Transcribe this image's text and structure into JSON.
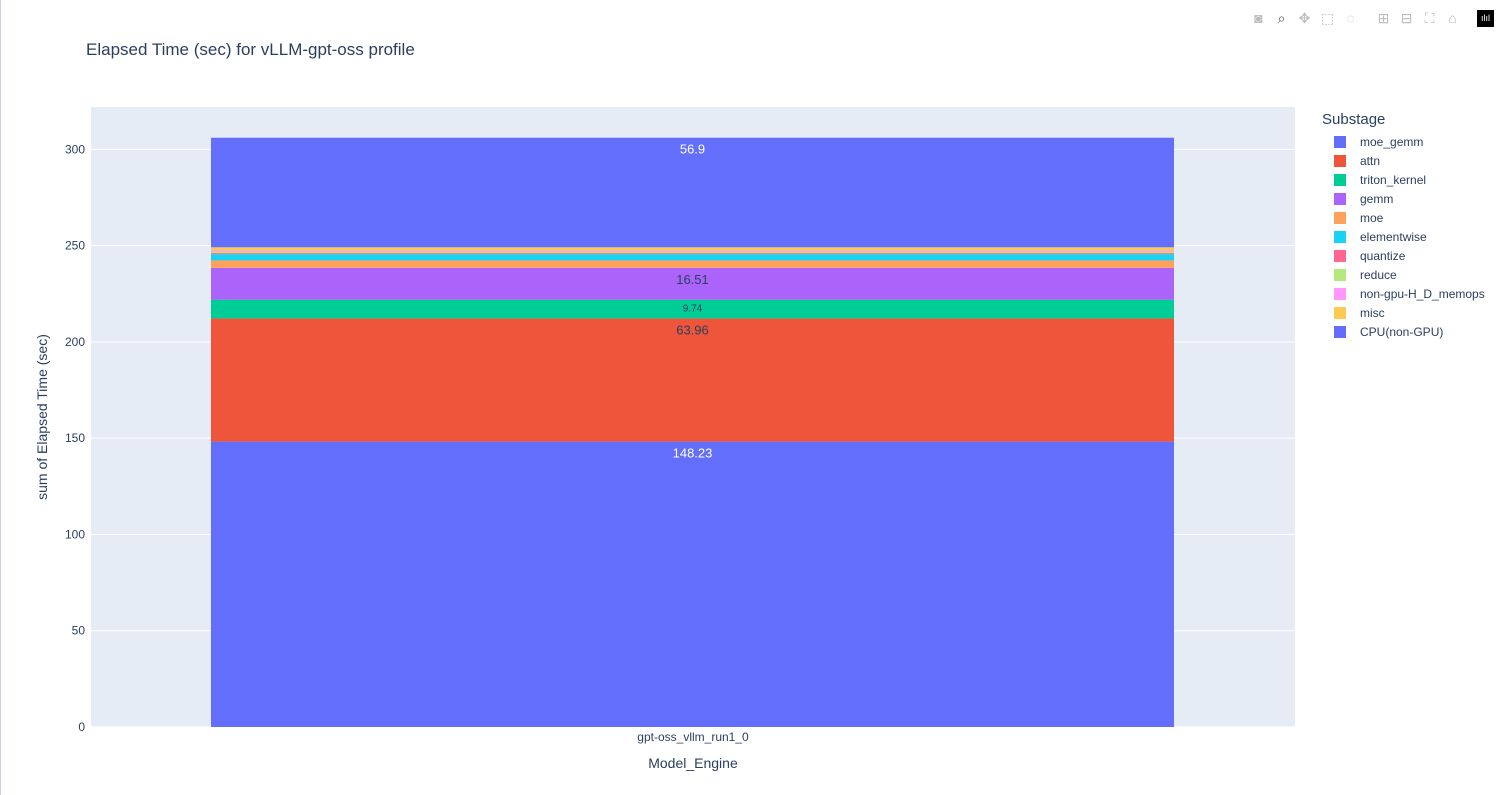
{
  "title": "Elapsed Time (sec) for vLLM-gpt-oss profile",
  "modebar": [
    "camera-icon",
    "zoom-icon",
    "pan-icon",
    "box-select-icon",
    "lasso-icon",
    "zoom-in-icon",
    "zoom-out-icon",
    "autoscale-icon",
    "reset-axes-icon",
    "plotly-logo-icon"
  ],
  "legend": {
    "title": "Substage"
  },
  "chart_data": {
    "type": "bar",
    "barmode": "stack",
    "title": "Elapsed Time (sec) for vLLM-gpt-oss profile",
    "xlabel": "Model_Engine",
    "ylabel": "sum of Elapsed Time (sec)",
    "categories": [
      "gpt-oss_vllm_run1_0"
    ],
    "ylim": [
      0,
      322
    ],
    "yticks": [
      0,
      50,
      100,
      150,
      200,
      250,
      300
    ],
    "grid": true,
    "legend_position": "right",
    "series": [
      {
        "name": "CPU(non-GPU)",
        "color": "#636efa",
        "values": [
          148.23
        ],
        "label": "148.23"
      },
      {
        "name": "attn",
        "color": "#EF553B",
        "values": [
          63.96
        ],
        "label": "63.96"
      },
      {
        "name": "triton_kernel",
        "color": "#00cc96",
        "values": [
          9.74
        ],
        "label": "9.74"
      },
      {
        "name": "gemm",
        "color": "#ab63fa",
        "values": [
          16.51
        ],
        "label": "16.51"
      },
      {
        "name": "moe",
        "color": "#FFA15A",
        "values": [
          3.9
        ],
        "label": ""
      },
      {
        "name": "elementwise",
        "color": "#19d3f3",
        "values": [
          3.2
        ],
        "label": ""
      },
      {
        "name": "quantize",
        "color": "#FF6692",
        "values": [
          0.6
        ],
        "label": ""
      },
      {
        "name": "reduce",
        "color": "#B6E880",
        "values": [
          0.8
        ],
        "label": ""
      },
      {
        "name": "non-gpu-H_D_memops",
        "color": "#FF97FF",
        "values": [
          0.6
        ],
        "label": ""
      },
      {
        "name": "misc",
        "color": "#FECB52",
        "values": [
          1.6
        ],
        "label": ""
      },
      {
        "name": "moe_gemm",
        "color": "#636efa",
        "values": [
          56.9
        ],
        "label": "56.9"
      }
    ],
    "legend_order": [
      "moe_gemm",
      "attn",
      "triton_kernel",
      "gemm",
      "moe",
      "elementwise",
      "quantize",
      "reduce",
      "non-gpu-H_D_memops",
      "misc",
      "CPU(non-GPU)"
    ]
  }
}
